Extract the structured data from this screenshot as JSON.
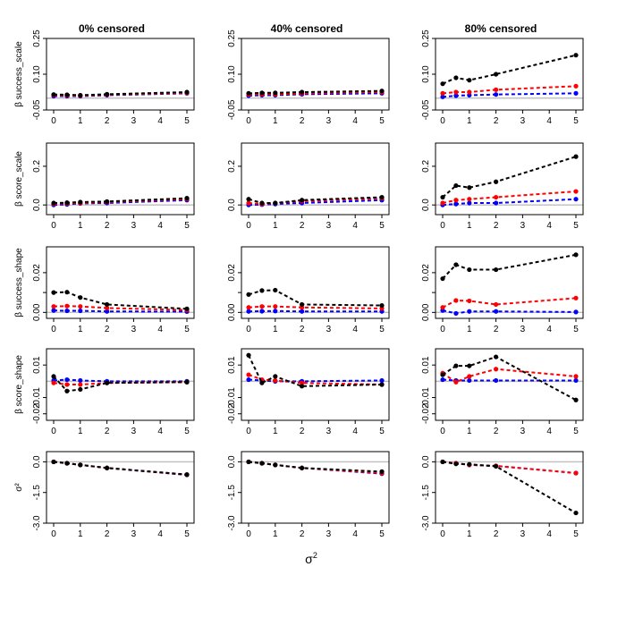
{
  "chart_data": {
    "type": "line",
    "x_axis_label": "σ²",
    "x_ticks": [
      0,
      1,
      2,
      3,
      4,
      5
    ],
    "x": [
      0,
      0.5,
      1,
      2,
      5
    ],
    "series_colors": {
      "black": "#000000",
      "red": "#ff0000",
      "blue": "#0000ff"
    },
    "reference_line_color": "#bebebe",
    "columns": [
      "0% censored",
      "40% censored",
      "80% censored"
    ],
    "rows": [
      {
        "ylabel": "β success_scale",
        "ylim": [
          -0.05,
          0.25
        ],
        "yticks": [
          -0.05,
          0.1,
          0.25
        ],
        "ytick_labels": [
          "-0.05",
          "0.10",
          "0.25"
        ],
        "panels": [
          {
            "series": [
              {
                "name": "black",
                "values": [
                  0.015,
                  0.014,
                  0.012,
                  0.016,
                  0.025
                ]
              },
              {
                "name": "red",
                "values": [
                  0.012,
                  0.011,
                  0.01,
                  0.014,
                  0.022
                ]
              },
              {
                "name": "blue",
                "values": [
                  0.008,
                  0.008,
                  0.008,
                  0.012,
                  0.02
                ]
              }
            ]
          },
          {
            "series": [
              {
                "name": "black",
                "values": [
                  0.02,
                  0.022,
                  0.022,
                  0.025,
                  0.03
                ]
              },
              {
                "name": "red",
                "values": [
                  0.015,
                  0.016,
                  0.016,
                  0.02,
                  0.025
                ]
              },
              {
                "name": "blue",
                "values": [
                  0.01,
                  0.012,
                  0.012,
                  0.016,
                  0.02
                ]
              }
            ]
          },
          {
            "series": [
              {
                "name": "black",
                "values": [
                  0.06,
                  0.085,
                  0.075,
                  0.1,
                  0.18
                ]
              },
              {
                "name": "red",
                "values": [
                  0.02,
                  0.025,
                  0.025,
                  0.035,
                  0.05
                ]
              },
              {
                "name": "blue",
                "values": [
                  0.005,
                  0.01,
                  0.012,
                  0.015,
                  0.02
                ]
              }
            ]
          }
        ]
      },
      {
        "ylabel": "β score_scale",
        "ylim": [
          -0.05,
          0.32
        ],
        "yticks": [
          0,
          0.2
        ],
        "ytick_labels": [
          "0.0",
          "0.2"
        ],
        "panels": [
          {
            "series": [
              {
                "name": "black",
                "values": [
                  0.01,
                  0.012,
                  0.015,
                  0.018,
                  0.035
                ]
              },
              {
                "name": "red",
                "values": [
                  0.005,
                  0.008,
                  0.01,
                  0.015,
                  0.03
                ]
              },
              {
                "name": "blue",
                "values": [
                  0.0,
                  0.003,
                  0.008,
                  0.01,
                  0.025
                ]
              }
            ]
          },
          {
            "series": [
              {
                "name": "black",
                "values": [
                  0.03,
                  0.01,
                  0.01,
                  0.025,
                  0.04
                ]
              },
              {
                "name": "red",
                "values": [
                  0.01,
                  0.005,
                  0.01,
                  0.02,
                  0.035
                ]
              },
              {
                "name": "blue",
                "values": [
                  0.0,
                  0.002,
                  0.005,
                  0.01,
                  0.025
                ]
              }
            ]
          },
          {
            "series": [
              {
                "name": "black",
                "values": [
                  0.04,
                  0.1,
                  0.09,
                  0.12,
                  0.25
                ]
              },
              {
                "name": "red",
                "values": [
                  0.01,
                  0.025,
                  0.03,
                  0.04,
                  0.07
                ]
              },
              {
                "name": "blue",
                "values": [
                  0.0,
                  0.005,
                  0.01,
                  0.01,
                  0.03
                ]
              }
            ]
          }
        ]
      },
      {
        "ylabel": "β success_shape",
        "ylim": [
          -0.003,
          0.033
        ],
        "yticks": [
          0,
          0.01,
          0.02
        ],
        "ytick_labels": [
          "0.00",
          "",
          "0.02"
        ],
        "panels": [
          {
            "series": [
              {
                "name": "black",
                "values": [
                  0.01,
                  0.0102,
                  0.0075,
                  0.004,
                  0.0018
                ]
              },
              {
                "name": "red",
                "values": [
                  0.003,
                  0.0032,
                  0.003,
                  0.0022,
                  0.0012
                ]
              },
              {
                "name": "blue",
                "values": [
                  0.001,
                  0.0008,
                  0.0008,
                  0.0005,
                  0.0004
                ]
              }
            ]
          },
          {
            "series": [
              {
                "name": "black",
                "values": [
                  0.009,
                  0.011,
                  0.0112,
                  0.004,
                  0.0035
                ]
              },
              {
                "name": "red",
                "values": [
                  0.0025,
                  0.003,
                  0.003,
                  0.0025,
                  0.002
                ]
              },
              {
                "name": "blue",
                "values": [
                  0.0005,
                  0.0006,
                  0.0007,
                  0.0005,
                  0.0005
                ]
              }
            ]
          },
          {
            "series": [
              {
                "name": "black",
                "values": [
                  0.017,
                  0.024,
                  0.0215,
                  0.0215,
                  0.029
                ]
              },
              {
                "name": "red",
                "values": [
                  0.0025,
                  0.006,
                  0.0058,
                  0.004,
                  0.0072
                ]
              },
              {
                "name": "blue",
                "values": [
                  0.001,
                  -0.0005,
                  0.0005,
                  0.0005,
                  0.0002
                ]
              }
            ]
          }
        ]
      },
      {
        "ylabel": "β score_shape",
        "ylim": [
          -0.024,
          0.02
        ],
        "yticks": [
          0.01,
          -0.01
        ],
        "ytick_labels": [
          "0.01",
          "-0.01"
        ],
        "extra_ytick_labels": [
          "-0.02"
        ],
        "extra_yticks": [
          -0.02
        ],
        "panels": [
          {
            "series": [
              {
                "name": "black",
                "values": [
                  0.003,
                  -0.006,
                  -0.005,
                  -0.001,
                  -0.0005
                ]
              },
              {
                "name": "red",
                "values": [
                  -0.001,
                  -0.002,
                  -0.002,
                  -0.001,
                  -0.0005
                ]
              },
              {
                "name": "blue",
                "values": [
                  0.0005,
                  0.001,
                  0.0005,
                  0.0,
                  0.0
                ]
              }
            ]
          },
          {
            "series": [
              {
                "name": "black",
                "values": [
                  0.016,
                  -0.001,
                  0.003,
                  -0.003,
                  -0.002
                ]
              },
              {
                "name": "red",
                "values": [
                  0.004,
                  0.001,
                  0.0005,
                  -0.001,
                  -0.002
                ]
              },
              {
                "name": "blue",
                "values": [
                  0.001,
                  0.0005,
                  0.0,
                  0.0,
                  0.0005
                ]
              }
            ]
          },
          {
            "series": [
              {
                "name": "black",
                "values": [
                  0.004,
                  0.0095,
                  0.0095,
                  0.015,
                  -0.0115
                ]
              },
              {
                "name": "red",
                "values": [
                  0.005,
                  -0.0005,
                  0.003,
                  0.0075,
                  0.003
                ]
              },
              {
                "name": "blue",
                "values": [
                  0.001,
                  0.0005,
                  0.0005,
                  0.0005,
                  0.0005
                ]
              }
            ]
          }
        ]
      },
      {
        "ylabel": "σ²",
        "ylim": [
          -3.0,
          0.5
        ],
        "yticks": [
          0.0,
          -1.5,
          -3.0
        ],
        "ytick_labels": [
          "0.0",
          "-1.5",
          "-3.0"
        ],
        "panels": [
          {
            "series": [
              {
                "name": "black",
                "values": [
                  0.0,
                  -0.07,
                  -0.15,
                  -0.3,
                  -0.62
                ]
              },
              {
                "name": "red",
                "values": [
                  0.0,
                  -0.07,
                  -0.15,
                  -0.3,
                  -0.63
                ]
              },
              {
                "name": "blue",
                "values": [
                  0.0,
                  -0.07,
                  -0.15,
                  -0.3,
                  -0.64
                ]
              }
            ]
          },
          {
            "series": [
              {
                "name": "black",
                "values": [
                  0.0,
                  -0.07,
                  -0.15,
                  -0.3,
                  -0.48
                ]
              },
              {
                "name": "red",
                "values": [
                  0.0,
                  -0.07,
                  -0.15,
                  -0.3,
                  -0.55
                ]
              },
              {
                "name": "blue",
                "values": [
                  0.0,
                  -0.07,
                  -0.15,
                  -0.3,
                  -0.58
                ]
              }
            ]
          },
          {
            "series": [
              {
                "name": "black",
                "values": [
                  0.0,
                  -0.1,
                  -0.12,
                  -0.22,
                  -2.5
                ]
              },
              {
                "name": "red",
                "values": [
                  0.0,
                  -0.07,
                  -0.15,
                  -0.2,
                  -0.55
                ]
              },
              {
                "name": "blue",
                "values": [
                  0.0,
                  -0.07,
                  -0.15,
                  -0.2,
                  -0.55
                ]
              }
            ]
          }
        ]
      }
    ]
  }
}
